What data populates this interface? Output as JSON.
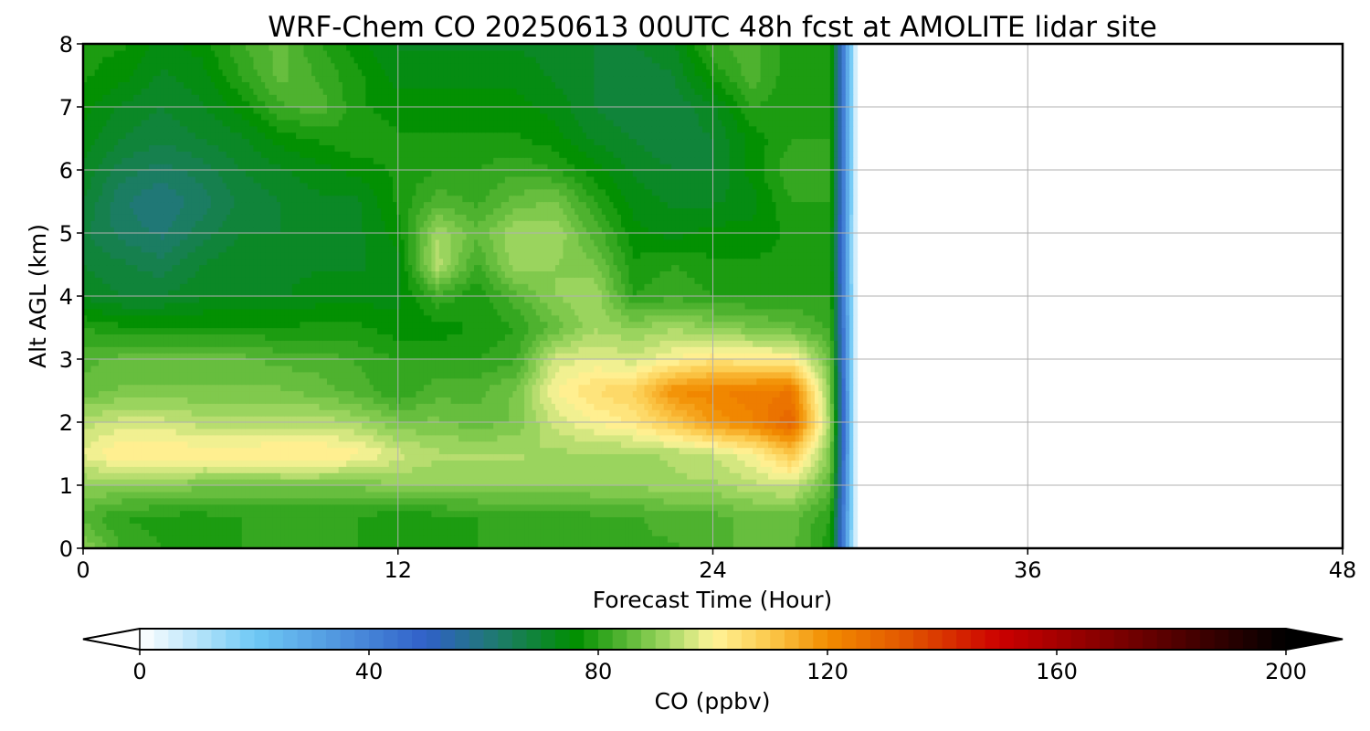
{
  "chart_data": {
    "type": "heatmap",
    "title": "WRF-Chem CO  20250613 00UTC 48h fcst at AMOLITE lidar site",
    "xlabel": "Forecast Time (Hour)",
    "ylabel": "Alt AGL (km)",
    "xlim": [
      0,
      48
    ],
    "ylim": [
      0,
      8
    ],
    "x_ticks": [
      "0",
      "12",
      "24",
      "36",
      "48"
    ],
    "y_ticks": [
      "0",
      "1",
      "2",
      "3",
      "4",
      "5",
      "6",
      "7",
      "8"
    ],
    "grid": true,
    "x": [
      0,
      1.5,
      3,
      4.5,
      6,
      7.5,
      9,
      10.5,
      12,
      13.5,
      15,
      16.5,
      18,
      19.5,
      21,
      22.5,
      24,
      25.5,
      27,
      28.5,
      29.5
    ],
    "y": [
      0,
      0.5,
      1,
      1.5,
      2,
      2.5,
      3,
      3.5,
      4,
      4.5,
      5,
      5.5,
      6,
      6.5,
      7,
      7.5,
      8
    ],
    "z": [
      [
        90,
        82,
        80,
        80,
        80,
        80,
        80,
        80,
        78,
        78,
        80,
        80,
        80,
        80,
        82,
        82,
        84,
        86,
        86,
        78,
        0
      ],
      [
        84,
        80,
        79,
        79,
        80,
        80,
        80,
        80,
        78,
        79,
        80,
        80,
        80,
        82,
        82,
        84,
        84,
        86,
        86,
        80,
        0
      ],
      [
        90,
        90,
        90,
        88,
        88,
        88,
        88,
        88,
        90,
        90,
        90,
        90,
        90,
        90,
        90,
        92,
        92,
        94,
        96,
        85,
        0
      ],
      [
        98,
        103,
        103,
        102,
        102,
        103,
        103,
        101,
        96,
        93,
        93,
        93,
        92,
        92,
        92,
        93,
        95,
        100,
        110,
        88,
        0
      ],
      [
        94,
        96,
        96,
        94,
        94,
        94,
        94,
        92,
        88,
        88,
        86,
        88,
        96,
        100,
        103,
        110,
        118,
        122,
        130,
        90,
        0
      ],
      [
        86,
        88,
        88,
        88,
        88,
        88,
        86,
        84,
        80,
        84,
        84,
        88,
        100,
        105,
        108,
        120,
        122,
        124,
        125,
        88,
        0
      ],
      [
        84,
        86,
        86,
        86,
        86,
        84,
        84,
        82,
        80,
        80,
        80,
        82,
        96,
        98,
        96,
        100,
        104,
        102,
        102,
        86,
        0
      ],
      [
        80,
        78,
        78,
        78,
        78,
        78,
        78,
        78,
        76,
        76,
        78,
        80,
        86,
        92,
        90,
        92,
        90,
        88,
        86,
        82,
        0
      ],
      [
        72,
        70,
        70,
        72,
        72,
        72,
        74,
        74,
        74,
        82,
        78,
        84,
        90,
        92,
        80,
        82,
        80,
        80,
        80,
        80,
        0
      ],
      [
        70,
        68,
        66,
        70,
        72,
        72,
        72,
        72,
        74,
        94,
        82,
        92,
        90,
        88,
        78,
        80,
        78,
        78,
        78,
        78,
        0
      ],
      [
        68,
        64,
        62,
        66,
        70,
        70,
        72,
        72,
        76,
        92,
        86,
        92,
        92,
        84,
        76,
        74,
        76,
        76,
        78,
        78,
        0
      ],
      [
        70,
        63,
        60,
        64,
        68,
        70,
        72,
        72,
        78,
        84,
        82,
        86,
        88,
        80,
        74,
        72,
        72,
        74,
        80,
        80,
        0
      ],
      [
        72,
        66,
        64,
        66,
        70,
        72,
        74,
        76,
        78,
        80,
        80,
        82,
        80,
        76,
        72,
        70,
        70,
        76,
        82,
        80,
        0
      ],
      [
        74,
        70,
        68,
        70,
        72,
        76,
        78,
        80,
        78,
        78,
        78,
        78,
        76,
        72,
        70,
        68,
        70,
        76,
        80,
        80,
        0
      ],
      [
        76,
        72,
        70,
        72,
        76,
        82,
        84,
        78,
        76,
        76,
        76,
        76,
        74,
        70,
        68,
        68,
        72,
        80,
        78,
        80,
        0
      ],
      [
        78,
        76,
        72,
        74,
        80,
        86,
        82,
        78,
        74,
        74,
        74,
        74,
        72,
        70,
        68,
        70,
        78,
        84,
        78,
        80,
        0
      ],
      [
        78,
        78,
        74,
        76,
        82,
        86,
        80,
        76,
        72,
        72,
        72,
        72,
        72,
        70,
        70,
        72,
        82,
        84,
        78,
        80,
        0
      ]
    ],
    "colorbar": {
      "label": "CO  (ppbv)",
      "min": 0,
      "max": 200,
      "ticks": [
        "0",
        "40",
        "80",
        "120",
        "160",
        "200"
      ],
      "extend": "both",
      "colormap_stops": [
        {
          "v": 0,
          "c": "#ffffff"
        },
        {
          "v": 20,
          "c": "#6fc9f5"
        },
        {
          "v": 50,
          "c": "#3060c8"
        },
        {
          "v": 62,
          "c": "#1f7a70"
        },
        {
          "v": 76,
          "c": "#008f00"
        },
        {
          "v": 90,
          "c": "#8ccf55"
        },
        {
          "v": 100,
          "c": "#fff59a"
        },
        {
          "v": 110,
          "c": "#fbc84a"
        },
        {
          "v": 120,
          "c": "#f28c00"
        },
        {
          "v": 135,
          "c": "#e05000"
        },
        {
          "v": 150,
          "c": "#cc0000"
        },
        {
          "v": 175,
          "c": "#6a0000"
        },
        {
          "v": 200,
          "c": "#000000"
        }
      ]
    }
  }
}
